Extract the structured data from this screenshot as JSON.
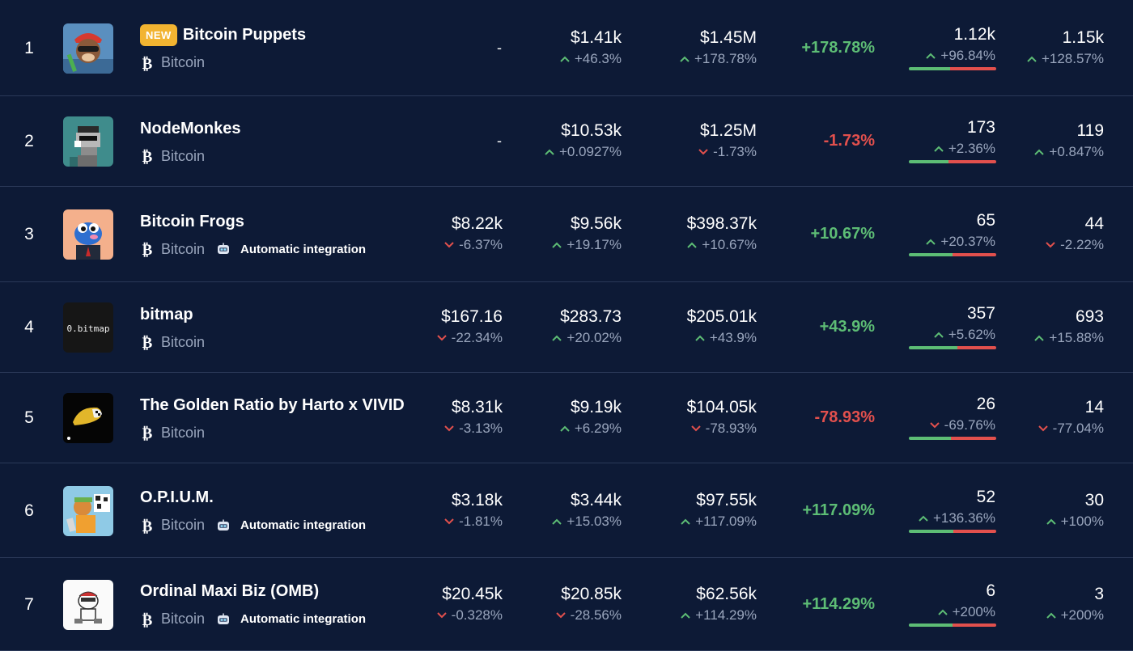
{
  "colors": {
    "background": "#0d1a36",
    "positive": "#5dbd75",
    "negative": "#e2504d",
    "muted": "#9aa6bd",
    "badge": "#f2b431"
  },
  "rows": [
    {
      "rank": "1",
      "name": "Bitcoin Puppets",
      "badge": "NEW",
      "chain": "Bitcoin",
      "auto": "",
      "thumb": "puppet-thumbnail",
      "floor": "-",
      "floor_chg": "",
      "floor_dir": "",
      "avg": "$1.41k",
      "avg_chg": "+46.3%",
      "avg_dir": "up",
      "vol": "$1.45M",
      "vol_chg": "+178.78%",
      "vol_dir": "up",
      "vol_pct": "+178.78%",
      "vol_pct_dir": "up",
      "sales": "1.12k",
      "sales_chg": "+96.84%",
      "sales_dir": "up",
      "buy_ratio": 0.47,
      "owners": "1.15k",
      "owners_chg": "+128.57%",
      "owners_dir": "up"
    },
    {
      "rank": "2",
      "name": "NodeMonkes",
      "badge": "",
      "chain": "Bitcoin",
      "auto": "",
      "thumb": "monkey-thumbnail",
      "floor": "-",
      "floor_chg": "",
      "floor_dir": "",
      "avg": "$10.53k",
      "avg_chg": "+0.0927%",
      "avg_dir": "up",
      "vol": "$1.25M",
      "vol_chg": "-1.73%",
      "vol_dir": "down",
      "vol_pct": "-1.73%",
      "vol_pct_dir": "down",
      "sales": "173",
      "sales_chg": "+2.36%",
      "sales_dir": "up",
      "buy_ratio": 0.45,
      "owners": "119",
      "owners_chg": "+0.847%",
      "owners_dir": "up"
    },
    {
      "rank": "3",
      "name": "Bitcoin Frogs",
      "badge": "",
      "chain": "Bitcoin",
      "auto": "Automatic integration",
      "thumb": "frog-thumbnail",
      "floor": "$8.22k",
      "floor_chg": "-6.37%",
      "floor_dir": "down",
      "avg": "$9.56k",
      "avg_chg": "+19.17%",
      "avg_dir": "up",
      "vol": "$398.37k",
      "vol_chg": "+10.67%",
      "vol_dir": "up",
      "vol_pct": "+10.67%",
      "vol_pct_dir": "up",
      "sales": "65",
      "sales_chg": "+20.37%",
      "sales_dir": "up",
      "buy_ratio": 0.5,
      "owners": "44",
      "owners_chg": "-2.22%",
      "owners_dir": "down"
    },
    {
      "rank": "4",
      "name": "bitmap",
      "badge": "",
      "chain": "Bitcoin",
      "auto": "",
      "thumb": "bitmap-thumbnail",
      "thumb_text": "0.bitmap",
      "floor": "$167.16",
      "floor_chg": "-22.34%",
      "floor_dir": "down",
      "avg": "$283.73",
      "avg_chg": "+20.02%",
      "avg_dir": "up",
      "vol": "$205.01k",
      "vol_chg": "+43.9%",
      "vol_dir": "up",
      "vol_pct": "+43.9%",
      "vol_pct_dir": "up",
      "sales": "357",
      "sales_chg": "+5.62%",
      "sales_dir": "up",
      "buy_ratio": 0.56,
      "owners": "693",
      "owners_chg": "+15.88%",
      "owners_dir": "up"
    },
    {
      "rank": "5",
      "name": "The Golden Ratio by Harto x VIVID",
      "badge": "",
      "chain": "Bitcoin",
      "auto": "",
      "thumb": "golden-ratio-thumbnail",
      "floor": "$8.31k",
      "floor_chg": "-3.13%",
      "floor_dir": "down",
      "avg": "$9.19k",
      "avg_chg": "+6.29%",
      "avg_dir": "up",
      "vol": "$104.05k",
      "vol_chg": "-78.93%",
      "vol_dir": "down",
      "vol_pct": "-78.93%",
      "vol_pct_dir": "down",
      "sales": "26",
      "sales_chg": "-69.76%",
      "sales_dir": "down",
      "buy_ratio": 0.48,
      "owners": "14",
      "owners_chg": "-77.04%",
      "owners_dir": "down"
    },
    {
      "rank": "6",
      "name": "O.P.I.U.M.",
      "badge": "",
      "chain": "Bitcoin",
      "auto": "Automatic integration",
      "thumb": "opium-thumbnail",
      "floor": "$3.18k",
      "floor_chg": "-1.81%",
      "floor_dir": "down",
      "avg": "$3.44k",
      "avg_chg": "+15.03%",
      "avg_dir": "up",
      "vol": "$97.55k",
      "vol_chg": "+117.09%",
      "vol_dir": "up",
      "vol_pct": "+117.09%",
      "vol_pct_dir": "up",
      "sales": "52",
      "sales_chg": "+136.36%",
      "sales_dir": "up",
      "buy_ratio": 0.51,
      "owners": "30",
      "owners_chg": "+100%",
      "owners_dir": "up"
    },
    {
      "rank": "7",
      "name": "Ordinal Maxi Biz (OMB)",
      "badge": "",
      "chain": "Bitcoin",
      "auto": "Automatic integration",
      "thumb": "omb-thumbnail",
      "floor": "$20.45k",
      "floor_chg": "-0.328%",
      "floor_dir": "down",
      "avg": "$20.85k",
      "avg_chg": "-28.56%",
      "avg_dir": "down",
      "vol": "$62.56k",
      "vol_chg": "+114.29%",
      "vol_dir": "up",
      "vol_pct": "+114.29%",
      "vol_pct_dir": "up",
      "sales": "6",
      "sales_chg": "+200%",
      "sales_dir": "up",
      "buy_ratio": 0.5,
      "owners": "3",
      "owners_chg": "+200%",
      "owners_dir": "up"
    }
  ]
}
